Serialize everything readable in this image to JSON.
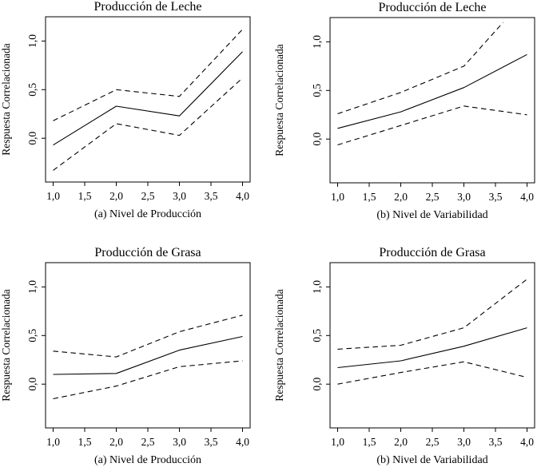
{
  "figure": {
    "background": "#ffffff",
    "stroke_color": "#000000",
    "description_visible_text_only": true
  },
  "chart_data": [
    {
      "id": "top-left",
      "type": "line",
      "title": "Producción de Leche",
      "xlabel": "(a) Nivel de Producción",
      "ylabel": "Respuesta Correlacionada",
      "xlim": [
        0.88,
        4.12
      ],
      "ylim": [
        -0.45,
        1.25
      ],
      "grid": false,
      "legend": "none",
      "x_ticks": {
        "values": [
          1,
          1.5,
          2,
          2.5,
          3,
          3.5,
          4
        ],
        "labels": [
          "1,0",
          "1,5",
          "2,0",
          "2,5",
          "3,0",
          "3,5",
          "4,0"
        ]
      },
      "y_ticks": {
        "values": [
          0,
          0.5,
          1
        ],
        "labels": [
          "0,0",
          "0,5",
          "1,0"
        ]
      },
      "series": [
        {
          "name": "central-estimate",
          "line_style": "solid",
          "x": [
            1,
            2,
            3,
            4
          ],
          "y": [
            -0.07,
            0.33,
            0.23,
            0.89
          ]
        },
        {
          "name": "upper-dashed-band",
          "line_style": "dashed",
          "x": [
            1,
            2,
            3,
            4
          ],
          "y": [
            0.18,
            0.5,
            0.43,
            1.12
          ]
        },
        {
          "name": "lower-dashed-band",
          "line_style": "dashed",
          "x": [
            1,
            2,
            3,
            4
          ],
          "y": [
            -0.33,
            0.15,
            0.03,
            0.62
          ]
        }
      ]
    },
    {
      "id": "top-right",
      "type": "line",
      "title": "Producción de Leche",
      "xlabel": "(b) Nivel de Variabilidad",
      "ylabel": "Respuesta Correlacionada",
      "xlim": [
        0.88,
        4.12
      ],
      "ylim": [
        -0.45,
        1.25
      ],
      "grid": false,
      "legend": "none",
      "x_ticks": {
        "values": [
          1,
          1.5,
          2,
          2.5,
          3,
          3.5,
          4
        ],
        "labels": [
          "1,0",
          "1,5",
          "2,0",
          "2,5",
          "3,0",
          "3,5",
          "4,0"
        ]
      },
      "y_ticks": {
        "values": [
          0,
          0.5,
          1
        ],
        "labels": [
          "0,0",
          "0,5",
          "1,0"
        ]
      },
      "series": [
        {
          "name": "central-estimate",
          "line_style": "solid",
          "x": [
            1,
            2,
            3,
            4
          ],
          "y": [
            0.11,
            0.28,
            0.53,
            0.87
          ]
        },
        {
          "name": "upper-dashed-band",
          "line_style": "dashed",
          "x": [
            1,
            2,
            3,
            3.62
          ],
          "y": [
            0.26,
            0.48,
            0.75,
            1.2
          ],
          "clipped_at_top": true
        },
        {
          "name": "lower-dashed-band",
          "line_style": "dashed",
          "x": [
            1,
            2,
            3,
            4
          ],
          "y": [
            -0.06,
            0.14,
            0.34,
            0.25
          ]
        }
      ]
    },
    {
      "id": "bottom-left",
      "type": "line",
      "title": "Producción de Grasa",
      "xlabel": "(a) Nivel de Producción",
      "ylabel": "Respuesta Correlacionada",
      "xlim": [
        0.88,
        4.12
      ],
      "ylim": [
        -0.45,
        1.25
      ],
      "grid": false,
      "legend": "none",
      "x_ticks": {
        "values": [
          1,
          1.5,
          2,
          2.5,
          3,
          3.5,
          4
        ],
        "labels": [
          "1,0",
          "1,5",
          "2,0",
          "2,5",
          "3,0",
          "3,5",
          "4,0"
        ]
      },
      "y_ticks": {
        "values": [
          0,
          0.5,
          1
        ],
        "labels": [
          "0,0",
          "0,5",
          "1,0"
        ]
      },
      "series": [
        {
          "name": "central-estimate",
          "line_style": "solid",
          "x": [
            1,
            2,
            3,
            4
          ],
          "y": [
            0.1,
            0.11,
            0.35,
            0.49
          ]
        },
        {
          "name": "upper-dashed-band",
          "line_style": "dashed",
          "x": [
            1,
            2,
            3,
            4
          ],
          "y": [
            0.34,
            0.28,
            0.54,
            0.71
          ]
        },
        {
          "name": "lower-dashed-band",
          "line_style": "dashed",
          "x": [
            1,
            2,
            3,
            4
          ],
          "y": [
            -0.15,
            -0.02,
            0.18,
            0.24
          ]
        }
      ]
    },
    {
      "id": "bottom-right",
      "type": "line",
      "title": "Producción de Grasa",
      "xlabel": "(b) Nivel de Variabilidad",
      "ylabel": "Respuesta Correlacionada",
      "xlim": [
        0.88,
        4.12
      ],
      "ylim": [
        -0.45,
        1.25
      ],
      "grid": false,
      "legend": "none",
      "x_ticks": {
        "values": [
          1,
          1.5,
          2,
          2.5,
          3,
          3.5,
          4
        ],
        "labels": [
          "1,0",
          "1,5",
          "2,0",
          "2,5",
          "3,0",
          "3,5",
          "4,0"
        ]
      },
      "y_ticks": {
        "values": [
          0,
          0.5,
          1
        ],
        "labels": [
          "0,0",
          "0,5",
          "1,0"
        ]
      },
      "series": [
        {
          "name": "central-estimate",
          "line_style": "solid",
          "x": [
            1,
            2,
            3,
            4
          ],
          "y": [
            0.17,
            0.24,
            0.39,
            0.58
          ]
        },
        {
          "name": "upper-dashed-band",
          "line_style": "dashed",
          "x": [
            1,
            2,
            3,
            4
          ],
          "y": [
            0.36,
            0.4,
            0.58,
            1.08
          ]
        },
        {
          "name": "lower-dashed-band",
          "line_style": "dashed",
          "x": [
            1,
            2,
            3,
            4
          ],
          "y": [
            0.0,
            0.12,
            0.23,
            0.07
          ]
        }
      ]
    }
  ]
}
